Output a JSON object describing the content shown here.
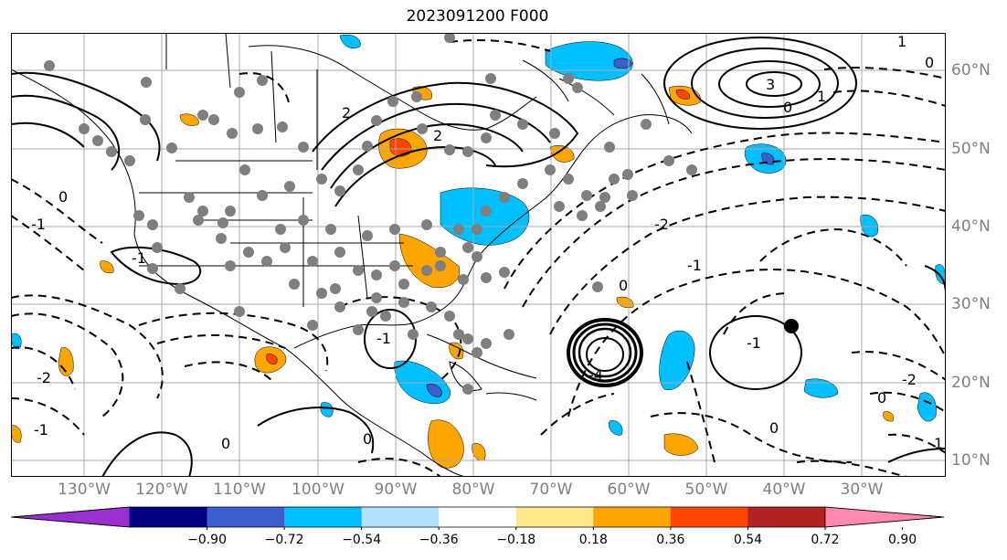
{
  "title": "2023091200 F000",
  "longitude_labels": [
    "130°W",
    "120°W",
    "110°W",
    "100°W",
    "90°W",
    "80°W",
    "70°W",
    "60°W",
    "50°W",
    "40°W",
    "30°W"
  ],
  "latitude_labels": [
    "60°N",
    "50°N",
    "40°N",
    "30°N",
    "20°N",
    "10°N"
  ],
  "contour_labels": [
    "2",
    "1",
    "0",
    "-1",
    "-2",
    "3",
    "-4"
  ],
  "colorbar": {
    "tick_labels": [
      "−0.90",
      "−0.72",
      "−0.54",
      "−0.36",
      "−0.18",
      "0.18",
      "0.36",
      "0.54",
      "0.72",
      "0.90"
    ],
    "colors": [
      "#9b30d0",
      "#000080",
      "#3a5fcd",
      "#00bfff",
      "#b0e2ff",
      "#ffffff",
      "#ffe98a",
      "#ffa500",
      "#ff4500",
      "#b22222",
      "#ff88b0"
    ]
  },
  "colors": {
    "gray_grid": "#a8a8a8",
    "station_dot": "#7f7f7f",
    "contour": "#000000"
  }
}
